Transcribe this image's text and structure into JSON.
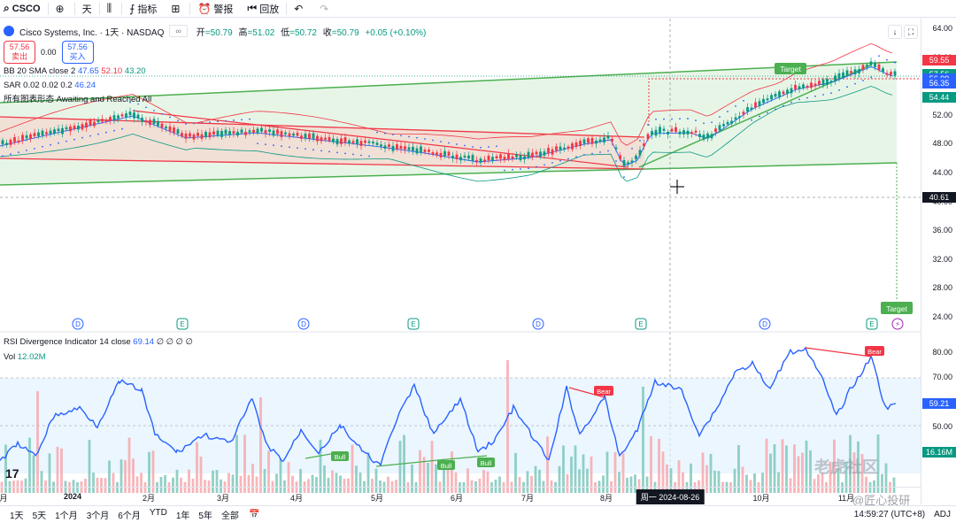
{
  "toolbar": {
    "symbol": "CSCO",
    "interval": "天",
    "indicators": "指标",
    "alert": "警报",
    "replay": "回放"
  },
  "legend": {
    "title": "Cisco Systems, Inc. · 1天 · NASDAQ",
    "open_k": "开",
    "open_v": "=50.79",
    "high_k": "高",
    "high_v": "=51.02",
    "low_k": "低",
    "low_v": "=50.72",
    "close_k": "收",
    "close_v": "=50.79",
    "change": "+0.05 (+0.10%)",
    "sell_price": "57.56",
    "sell_label": "卖出",
    "spread": "0.00",
    "buy_price": "57.56",
    "buy_label": "买入",
    "bb_label": "BB 20 SMA close 2",
    "bb_basis": "47.65",
    "bb_upper": "52.10",
    "bb_lower": "43.20",
    "sar_label": "SAR 0.02 0.02 0.2",
    "sar_value": "46.24",
    "pattern_label": "所有图表形态",
    "pattern_status": "Awaiting and Reached All"
  },
  "rsi_legend": {
    "label": "RSI Divergence Indicator",
    "params": "14 close",
    "value": "69.14",
    "zeros": "∅ ∅ ∅ ∅"
  },
  "vol_legend": {
    "label": "Vol",
    "value": "12.02M"
  },
  "price_scale": {
    "ticks": [
      "64.00",
      "60.00",
      "56.00",
      "52.00",
      "48.00",
      "44.00",
      "40.00",
      "36.00",
      "32.00",
      "28.00",
      "24.00"
    ],
    "badges": [
      {
        "text": "59.55",
        "color": "#f23645"
      },
      {
        "text": "57.56",
        "color": "#089981"
      },
      {
        "text": "56.99",
        "color": "#2962ff"
      },
      {
        "text": "56.35",
        "color": "#2962ff"
      },
      {
        "text": "54.44",
        "color": "#089981"
      }
    ],
    "crosshair_price": "40.61"
  },
  "rsi_scale": {
    "ticks": [
      "80.00",
      "70.00",
      "60.00",
      "50.00",
      "40.00"
    ],
    "rsi_badge": "59.21",
    "vol_badge": "16.16M"
  },
  "time_axis": {
    "labels": [
      "月",
      "2024",
      "2月",
      "3月",
      "4月",
      "5月",
      "6月",
      "7月",
      "8月",
      "10月",
      "11月"
    ],
    "crosshair_date": "周一 2024-08-26"
  },
  "events": [
    "D",
    "E",
    "D",
    "E",
    "D",
    "E",
    "D",
    "E"
  ],
  "annotations": {
    "target": "Target",
    "bull": "Bull",
    "bear": "Bear"
  },
  "bottom": {
    "ranges": [
      "1天",
      "5天",
      "1个月",
      "3个月",
      "6个月",
      "YTD",
      "1年",
      "5年",
      "全部"
    ],
    "clock": "14:59:27 (UTC+8)",
    "adj": "ADJ"
  },
  "watermarks": {
    "main": "老虎社区",
    "sub": "@匠心投研"
  },
  "colors": {
    "up": "#089981",
    "down": "#f23645",
    "accent": "#2962ff"
  }
}
